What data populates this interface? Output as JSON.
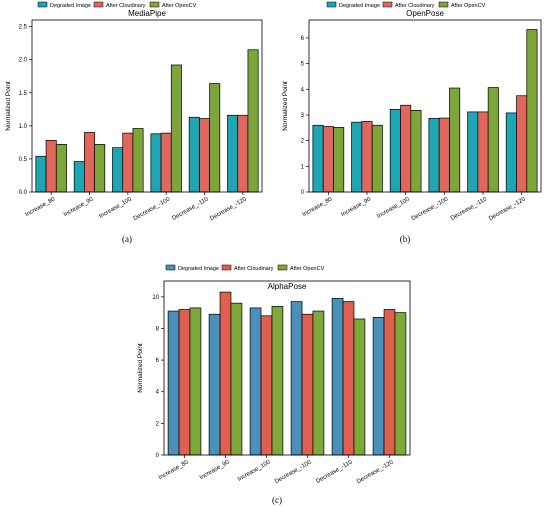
{
  "colors": {
    "degraded": "#1FA6B5",
    "cloudinary": "#E1675E",
    "opencv": "#7DA63A",
    "degraded_c": "#4A90B8",
    "cloudinary_c": "#E0604F",
    "opencv_c": "#7FA83B"
  },
  "chart_data": [
    {
      "id": "a",
      "type": "bar",
      "title": "MediaPipe",
      "panel_label": "(a)",
      "ylabel": "Normalized Point",
      "ylim": [
        0,
        2.6
      ],
      "yticks": [
        "0.0",
        "0.5",
        "1.0",
        "1.5",
        "2.0",
        "2.5"
      ],
      "ytick_values": [
        0,
        0.5,
        1.0,
        1.5,
        2.0,
        2.5
      ],
      "categories": [
        "Increase_80",
        "Increase_90",
        "Increase_100",
        "Decrease_-100",
        "Decrease_-110",
        "Decrease_-120"
      ],
      "legend": [
        "Degraded Image",
        "After Cloudinary",
        "After OpenCV"
      ],
      "series": [
        {
          "name": "Degraded Image",
          "values": [
            0.54,
            0.46,
            0.67,
            0.88,
            1.13,
            1.16
          ]
        },
        {
          "name": "After Cloudinary",
          "values": [
            0.78,
            0.9,
            0.89,
            0.89,
            1.11,
            1.16
          ]
        },
        {
          "name": "After OpenCV",
          "values": [
            0.72,
            0.72,
            0.96,
            1.92,
            1.64,
            2.15
          ]
        }
      ]
    },
    {
      "id": "b",
      "type": "bar",
      "title": "OpenPose",
      "panel_label": "(b)",
      "ylabel": "Normalized Point",
      "ylim": [
        0,
        6.7
      ],
      "yticks": [
        "0",
        "1",
        "2",
        "3",
        "4",
        "5",
        "6"
      ],
      "ytick_values": [
        0,
        1,
        2,
        3,
        4,
        5,
        6
      ],
      "categories": [
        "Increase_80",
        "Increase_90",
        "Increase_100",
        "Decrease_-100",
        "Decrease_-110",
        "Decrease_-120"
      ],
      "legend": [
        "Degraded Image",
        "After Cloudinary",
        "After OpenCV"
      ],
      "series": [
        {
          "name": "Degraded Image",
          "values": [
            2.6,
            2.72,
            3.22,
            2.87,
            3.12,
            3.08
          ]
        },
        {
          "name": "After Cloudinary",
          "values": [
            2.55,
            2.75,
            3.38,
            2.88,
            3.12,
            3.75
          ]
        },
        {
          "name": "After OpenCV",
          "values": [
            2.52,
            2.6,
            3.18,
            4.05,
            4.07,
            6.33
          ]
        }
      ]
    },
    {
      "id": "c",
      "type": "bar",
      "title": "AlphaPose",
      "panel_label": "(c)",
      "ylabel": "Normalized Point",
      "ylim": [
        0,
        11
      ],
      "yticks": [
        "0",
        "2",
        "4",
        "6",
        "8",
        "10"
      ],
      "ytick_values": [
        0,
        2,
        4,
        6,
        8,
        10
      ],
      "categories": [
        "Increase_80",
        "Increase_90",
        "Increase_100",
        "Decrease_-100",
        "Decrease_-110",
        "Decrease_-120"
      ],
      "legend": [
        "Degraded Image",
        "After Cloudinary",
        "After OpenCV"
      ],
      "series": [
        {
          "name": "Degraded Image",
          "values": [
            9.1,
            8.9,
            9.3,
            9.7,
            9.9,
            8.7
          ]
        },
        {
          "name": "After Cloudinary",
          "values": [
            9.2,
            10.3,
            8.8,
            8.9,
            9.7,
            9.2
          ]
        },
        {
          "name": "After OpenCV",
          "values": [
            9.3,
            9.6,
            9.4,
            9.1,
            8.6,
            9.0
          ]
        }
      ]
    }
  ]
}
